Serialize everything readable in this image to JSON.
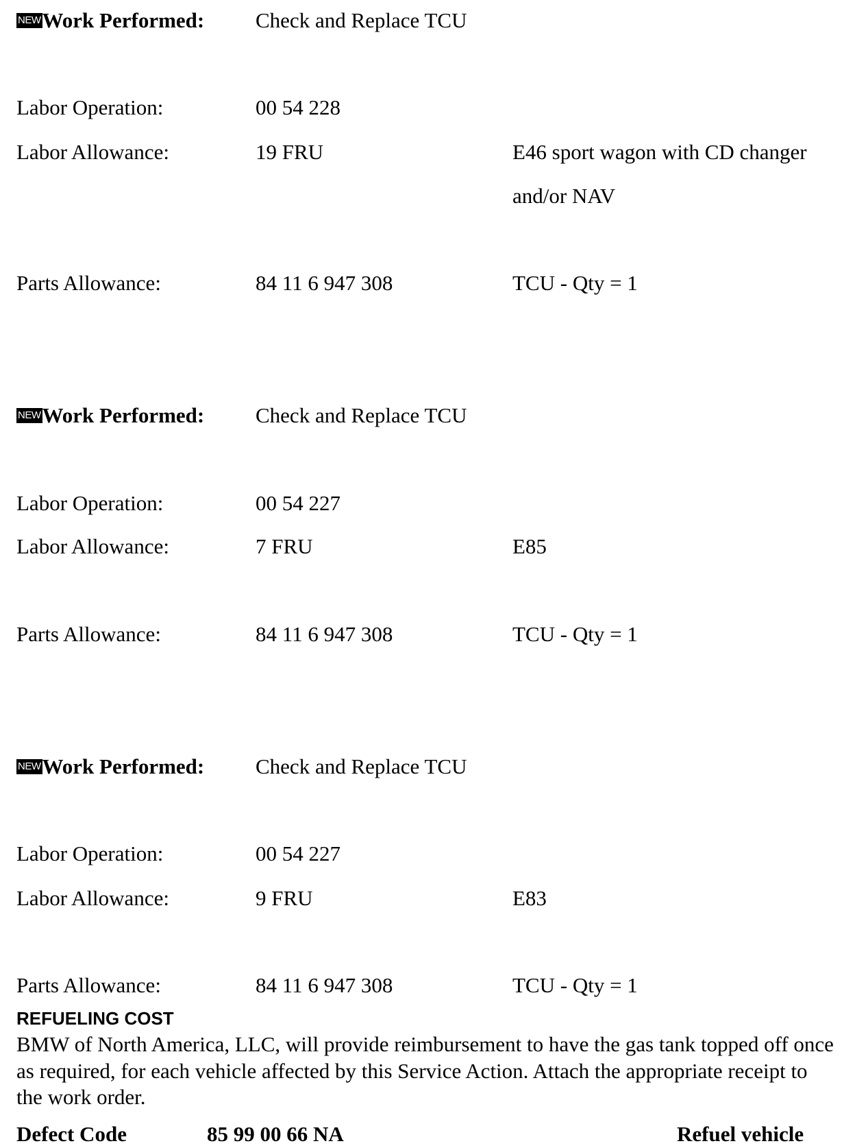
{
  "new_badge": "NEW",
  "blocks": [
    {
      "work_label": "Work Performed:",
      "work_value": "Check and Replace TCU",
      "labor_op_label": "Labor Operation:",
      "labor_op_value": "00 54 228",
      "labor_allow_label": "Labor Allowance:",
      "labor_allow_value": "19 FRU",
      "labor_allow_note_1": "E46 sport wagon with CD changer",
      "labor_allow_note_2": "and/or NAV",
      "parts_label": "Parts Allowance:",
      "parts_value": "84 11 6 947 308",
      "parts_note": "TCU - Qty = 1"
    },
    {
      "work_label": "Work Performed:",
      "work_value": "Check and Replace TCU",
      "labor_op_label": "Labor Operation:",
      "labor_op_value": "00 54 227",
      "labor_allow_label": "Labor Allowance:",
      "labor_allow_value": "7 FRU",
      "labor_allow_note_1": "E85",
      "parts_label": "Parts Allowance:",
      "parts_value": "84 11 6 947 308",
      "parts_note": "TCU - Qty = 1"
    },
    {
      "work_label": "Work Performed:",
      "work_value": "Check and Replace TCU",
      "labor_op_label": "Labor Operation:",
      "labor_op_value": "00 54 227",
      "labor_allow_label": "Labor Allowance:",
      "labor_allow_value": "9 FRU",
      "labor_allow_note_1": "E83",
      "parts_label": "Parts Allowance:",
      "parts_value": "84 11 6 947 308",
      "parts_note": "TCU - Qty = 1"
    }
  ],
  "refueling": {
    "heading": "REFUELING COST",
    "body": "BMW of North America, LLC, will provide reimbursement to have the gas tank topped off once as required, for each vehicle affected by this Service Action. Attach the appropriate receipt to the work order.",
    "defect_label": "Defect Code",
    "defect_code": "85 99 00 66 NA",
    "defect_desc": "Refuel vehicle"
  }
}
